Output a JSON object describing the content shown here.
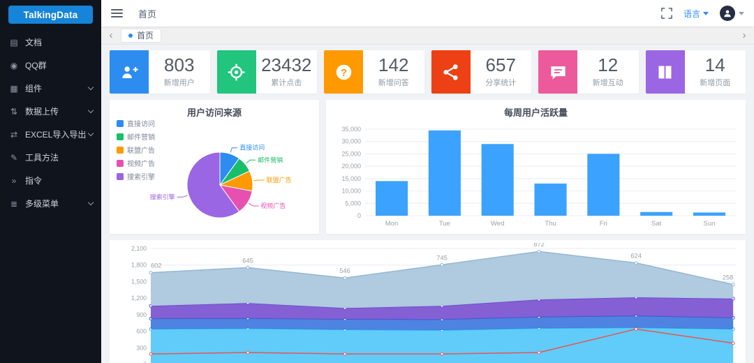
{
  "app": {
    "logo_text": "TalkingData"
  },
  "sidebar": {
    "items": [
      {
        "label": "文档",
        "glyph": "▤",
        "expandable": false
      },
      {
        "label": "QQ群",
        "glyph": "◉",
        "expandable": false
      },
      {
        "label": "组件",
        "glyph": "▦",
        "expandable": true
      },
      {
        "label": "数据上传",
        "glyph": "⇅",
        "expandable": true
      },
      {
        "label": "EXCEL导入导出",
        "glyph": "⇄",
        "expandable": true
      },
      {
        "label": "工具方法",
        "glyph": "✎",
        "expandable": false
      },
      {
        "label": "指令",
        "glyph": "»",
        "expandable": false
      },
      {
        "label": "多级菜单",
        "glyph": "≣",
        "expandable": true
      }
    ]
  },
  "header": {
    "breadcrumb": "首页",
    "language_label": "语言"
  },
  "tabbar": {
    "active_tab": "首页"
  },
  "stats": [
    {
      "value": "803",
      "label": "新增用户",
      "color": "#2d8cf0",
      "icon": "add-user-icon"
    },
    {
      "value": "23432",
      "label": "累计点击",
      "color": "#21c57d",
      "icon": "target-icon"
    },
    {
      "value": "142",
      "label": "新增问答",
      "color": "#ff9900",
      "icon": "question-icon"
    },
    {
      "value": "657",
      "label": "分享统计",
      "color": "#ed4014",
      "icon": "share-icon"
    },
    {
      "value": "12",
      "label": "新增互动",
      "color": "#ed5a9c",
      "icon": "message-icon"
    },
    {
      "value": "14",
      "label": "新增页面",
      "color": "#9a66e4",
      "icon": "book-icon"
    }
  ],
  "chart_data": [
    {
      "type": "pie",
      "title": "用户访问来源",
      "legend_position": "top-left",
      "values_are_estimated_percent": true,
      "slices": [
        {
          "name": "直接访问",
          "value": 10,
          "color": "#2d8cf0"
        },
        {
          "name": "邮件营销",
          "value": 8,
          "color": "#19be6b"
        },
        {
          "name": "联盟广告",
          "value": 10,
          "color": "#ff9900"
        },
        {
          "name": "视频广告",
          "value": 12,
          "color": "#e750b1"
        },
        {
          "name": "搜索引擎",
          "value": 60,
          "color": "#9a66e4"
        }
      ]
    },
    {
      "type": "bar",
      "title": "每周用户活跃量",
      "categories": [
        "Mon",
        "Tue",
        "Wed",
        "Thu",
        "Fri",
        "Sat",
        "Sun"
      ],
      "values": [
        14000,
        34500,
        29000,
        13000,
        25000,
        1500,
        1300
      ],
      "xlabel": "",
      "ylabel": "",
      "ylim": [
        0,
        35000
      ],
      "yticks": [
        0,
        5000,
        10000,
        15000,
        20000,
        25000,
        30000,
        35000
      ],
      "bar_color": "#3ba2ff",
      "grid": true
    },
    {
      "type": "area",
      "stacked": true,
      "x_points": 7,
      "x_axis_labels_visible": false,
      "ylim": [
        0,
        2100
      ],
      "yticks": [
        0,
        300,
        600,
        900,
        1200,
        1500,
        1800,
        2100
      ],
      "series": [
        {
          "name": "sky-blue-band",
          "color": "#54c8f8",
          "line_color": "#2fb4f5",
          "values": [
            640,
            650,
            630,
            620,
            655,
            665,
            640
          ]
        },
        {
          "name": "royal-blue-band",
          "color": "#4078e0",
          "line_color": "#2f63cc",
          "values": [
            190,
            185,
            190,
            195,
            205,
            215,
            205
          ]
        },
        {
          "name": "purple-band",
          "color": "#7b52d1",
          "line_color": "#6a41c4",
          "values": [
            230,
            275,
            200,
            245,
            315,
            335,
            345
          ]
        },
        {
          "name": "steel-blue-top-band",
          "color": "#a9c6dd",
          "line_color": "#93b7d6",
          "values": [
            602,
            645,
            546,
            745,
            872,
            624,
            258
          ],
          "point_labels_visible": true
        }
      ],
      "overlay_line": {
        "name": "red-line",
        "color": "#e85454",
        "values": [
          190,
          215,
          190,
          190,
          215,
          640,
          385
        ]
      }
    }
  ]
}
